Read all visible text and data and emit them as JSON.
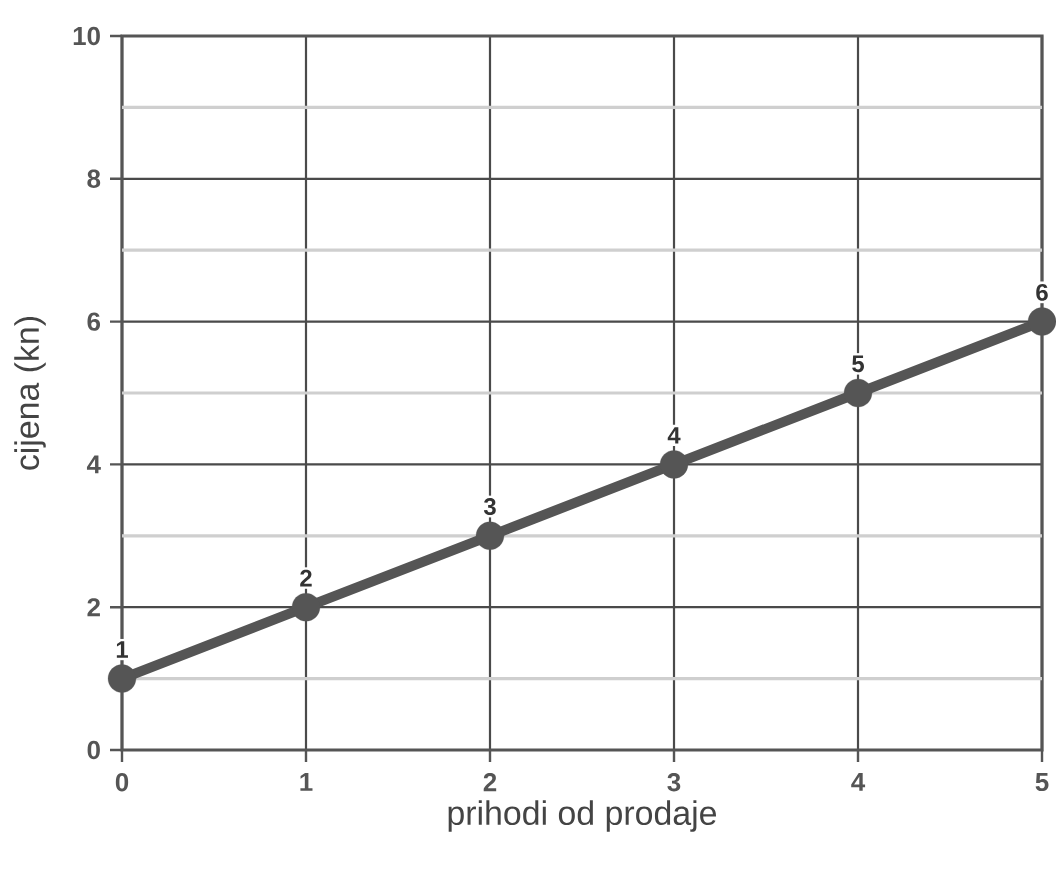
{
  "chart_data": {
    "type": "line",
    "xlabel": "prihodi od prodaje",
    "ylabel": "cijena (kn)",
    "x": [
      0,
      1,
      2,
      3,
      4,
      5
    ],
    "values": [
      1,
      2,
      3,
      4,
      5,
      6
    ],
    "color": "#555555",
    "xlim": [
      0,
      5
    ],
    "ylim": [
      0,
      10
    ],
    "xticks": [
      0,
      1,
      2,
      3,
      4,
      5
    ],
    "yticks": [
      0,
      {
        "value": 1,
        "label": null
      },
      2,
      {
        "value": 3,
        "label": null
      },
      4,
      {
        "value": 5,
        "label": null
      },
      6,
      {
        "value": 7,
        "label": null
      },
      8,
      {
        "value": 9,
        "label": null
      },
      10
    ],
    "grid": true,
    "marker": "circle",
    "line_style": "solid",
    "data_labels": true
  }
}
